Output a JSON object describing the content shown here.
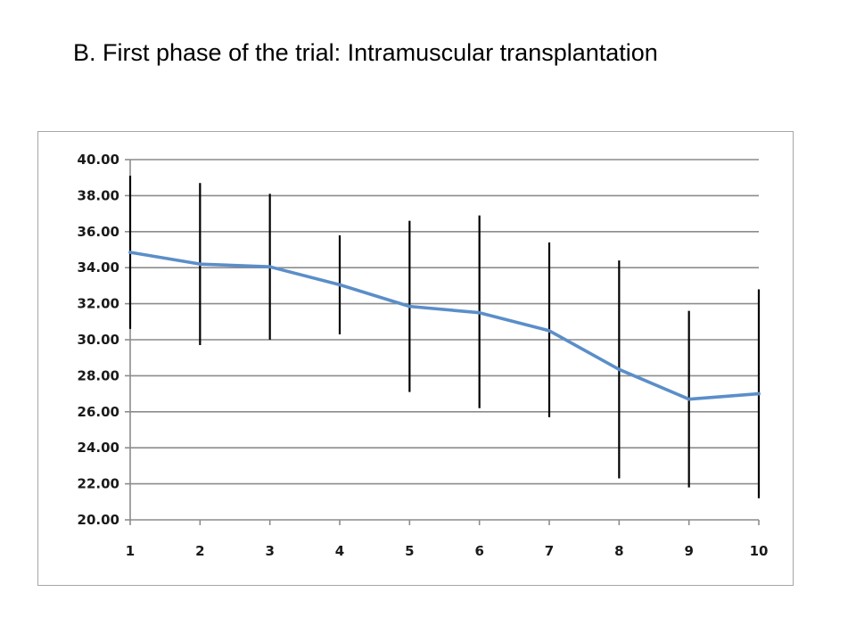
{
  "title": "B. First phase of the trial: Intramuscular transplantation",
  "colors": {
    "line": "#5b8ec9",
    "error_bar": "#000000",
    "grid": "#8c8c8c",
    "frame": "#a6a6a6"
  },
  "chart_data": {
    "type": "line",
    "title": "",
    "xlabel": "",
    "ylabel": "",
    "categories": [
      "1",
      "2",
      "3",
      "4",
      "5",
      "6",
      "7",
      "8",
      "9",
      "10"
    ],
    "series": [
      {
        "values": [
          34.85,
          34.2,
          34.05,
          33.05,
          31.85,
          31.5,
          30.5,
          28.35,
          26.7,
          27.0
        ],
        "error_low": [
          30.6,
          29.7,
          30.0,
          30.3,
          27.1,
          26.2,
          25.7,
          22.3,
          21.8,
          21.2
        ],
        "error_high": [
          39.1,
          38.7,
          38.1,
          35.8,
          36.6,
          36.9,
          35.4,
          34.4,
          31.6,
          32.8
        ]
      }
    ],
    "ylim": [
      20.0,
      40.0
    ],
    "yticks": [
      "20.00",
      "22.00",
      "24.00",
      "26.00",
      "28.00",
      "30.00",
      "32.00",
      "34.00",
      "36.00",
      "38.00",
      "40.00"
    ],
    "grid": true,
    "legend": "none"
  }
}
